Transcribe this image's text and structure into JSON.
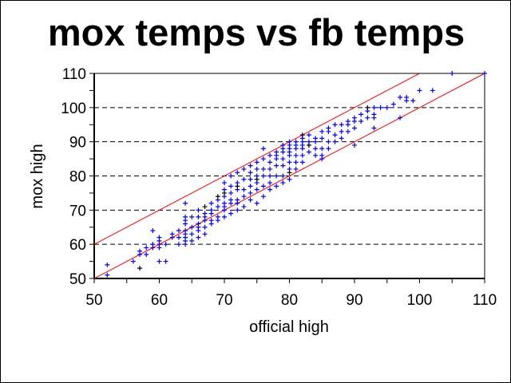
{
  "chart_data": {
    "type": "scatter",
    "title": "mox temps vs fb temps",
    "xlabel": "official high",
    "ylabel": "mox high",
    "xlim": [
      50,
      110
    ],
    "ylim": [
      50,
      110
    ],
    "xticks": [
      50,
      60,
      70,
      80,
      90,
      100,
      110
    ],
    "yticks": [
      50,
      60,
      70,
      80,
      90,
      100,
      110
    ],
    "grid": "horizontal dashed",
    "reference_lines": [
      {
        "name": "y = x",
        "color": "#ff0000",
        "from": [
          50,
          50
        ],
        "to": [
          110,
          110
        ]
      },
      {
        "name": "y = x + 10",
        "color": "#ff0000",
        "from": [
          50,
          60
        ],
        "to": [
          100,
          110
        ]
      }
    ],
    "series": [
      {
        "name": "blue",
        "color": "#0000ff",
        "points": [
          [
            52,
            51
          ],
          [
            52,
            54
          ],
          [
            56,
            55
          ],
          [
            57,
            57
          ],
          [
            57,
            58
          ],
          [
            58,
            59
          ],
          [
            58,
            57
          ],
          [
            59,
            60
          ],
          [
            59,
            64
          ],
          [
            59,
            59
          ],
          [
            60,
            55
          ],
          [
            60,
            59
          ],
          [
            60,
            60
          ],
          [
            60,
            61
          ],
          [
            60,
            62
          ],
          [
            61,
            55
          ],
          [
            61,
            60
          ],
          [
            62,
            62
          ],
          [
            62,
            63
          ],
          [
            63,
            60
          ],
          [
            63,
            62
          ],
          [
            63,
            64
          ],
          [
            64,
            60
          ],
          [
            64,
            61
          ],
          [
            64,
            62
          ],
          [
            64,
            63
          ],
          [
            64,
            64
          ],
          [
            64,
            66
          ],
          [
            64,
            67
          ],
          [
            64,
            68
          ],
          [
            64,
            72
          ],
          [
            65,
            61
          ],
          [
            65,
            63
          ],
          [
            65,
            65
          ],
          [
            65,
            68
          ],
          [
            66,
            62
          ],
          [
            66,
            64
          ],
          [
            66,
            65
          ],
          [
            66,
            66
          ],
          [
            66,
            68
          ],
          [
            66,
            70
          ],
          [
            67,
            63
          ],
          [
            67,
            65
          ],
          [
            67,
            67
          ],
          [
            67,
            68
          ],
          [
            67,
            69
          ],
          [
            68,
            66
          ],
          [
            68,
            67
          ],
          [
            68,
            69
          ],
          [
            68,
            70
          ],
          [
            68,
            72
          ],
          [
            69,
            67
          ],
          [
            69,
            68
          ],
          [
            69,
            71
          ],
          [
            69,
            73
          ],
          [
            70,
            68
          ],
          [
            70,
            70
          ],
          [
            70,
            71
          ],
          [
            70,
            72
          ],
          [
            70,
            74
          ],
          [
            70,
            76
          ],
          [
            70,
            78
          ],
          [
            71,
            69
          ],
          [
            71,
            72
          ],
          [
            71,
            73
          ],
          [
            71,
            75
          ],
          [
            71,
            77
          ],
          [
            71,
            80
          ],
          [
            72,
            70
          ],
          [
            72,
            72
          ],
          [
            72,
            73
          ],
          [
            72,
            76
          ],
          [
            72,
            78
          ],
          [
            72,
            81
          ],
          [
            73,
            71
          ],
          [
            73,
            74
          ],
          [
            73,
            76
          ],
          [
            73,
            79
          ],
          [
            73,
            82
          ],
          [
            74,
            73
          ],
          [
            74,
            75
          ],
          [
            74,
            77
          ],
          [
            74,
            79
          ],
          [
            74,
            81
          ],
          [
            74,
            83
          ],
          [
            75,
            72
          ],
          [
            75,
            76
          ],
          [
            75,
            78
          ],
          [
            75,
            80
          ],
          [
            75,
            82
          ],
          [
            75,
            84
          ],
          [
            76,
            74
          ],
          [
            76,
            77
          ],
          [
            76,
            80
          ],
          [
            76,
            82
          ],
          [
            76,
            85
          ],
          [
            76,
            88
          ],
          [
            77,
            76
          ],
          [
            77,
            78
          ],
          [
            77,
            80
          ],
          [
            77,
            82
          ],
          [
            77,
            84
          ],
          [
            77,
            86
          ],
          [
            78,
            77
          ],
          [
            78,
            80
          ],
          [
            78,
            83
          ],
          [
            78,
            85
          ],
          [
            78,
            86
          ],
          [
            78,
            87
          ],
          [
            79,
            78
          ],
          [
            79,
            80
          ],
          [
            79,
            83
          ],
          [
            79,
            85
          ],
          [
            79,
            87
          ],
          [
            79,
            88
          ],
          [
            79,
            89
          ],
          [
            80,
            79
          ],
          [
            80,
            82
          ],
          [
            80,
            84
          ],
          [
            80,
            86
          ],
          [
            80,
            87
          ],
          [
            80,
            88
          ],
          [
            80,
            89
          ],
          [
            80,
            90
          ],
          [
            81,
            82
          ],
          [
            81,
            84
          ],
          [
            81,
            86
          ],
          [
            81,
            88
          ],
          [
            81,
            89
          ],
          [
            81,
            90
          ],
          [
            82,
            84
          ],
          [
            82,
            86
          ],
          [
            82,
            88
          ],
          [
            82,
            89
          ],
          [
            82,
            90
          ],
          [
            82,
            91
          ],
          [
            83,
            87
          ],
          [
            83,
            89
          ],
          [
            83,
            90
          ],
          [
            83,
            92
          ],
          [
            84,
            86
          ],
          [
            84,
            88
          ],
          [
            84,
            90
          ],
          [
            84,
            91
          ],
          [
            85,
            85
          ],
          [
            85,
            86
          ],
          [
            85,
            88
          ],
          [
            85,
            91
          ],
          [
            85,
            93
          ],
          [
            86,
            88
          ],
          [
            86,
            90
          ],
          [
            86,
            93
          ],
          [
            86,
            94
          ],
          [
            87,
            90
          ],
          [
            87,
            92
          ],
          [
            87,
            95
          ],
          [
            88,
            91
          ],
          [
            88,
            93
          ],
          [
            88,
            95
          ],
          [
            89,
            93
          ],
          [
            89,
            95
          ],
          [
            89,
            96
          ],
          [
            90,
            89
          ],
          [
            90,
            94
          ],
          [
            90,
            96
          ],
          [
            90,
            97
          ],
          [
            91,
            96
          ],
          [
            91,
            98
          ],
          [
            92,
            97
          ],
          [
            92,
            99
          ],
          [
            93,
            94
          ],
          [
            93,
            97
          ],
          [
            93,
            98
          ],
          [
            93,
            100
          ],
          [
            94,
            100
          ],
          [
            95,
            100
          ],
          [
            96,
            101
          ],
          [
            97,
            97
          ],
          [
            97,
            103
          ],
          [
            98,
            102
          ],
          [
            98,
            103
          ],
          [
            99,
            102
          ],
          [
            100,
            105
          ],
          [
            102,
            105
          ],
          [
            105,
            110
          ],
          [
            110,
            110
          ]
        ]
      },
      {
        "name": "black",
        "color": "#000000",
        "points": [
          [
            57,
            53
          ],
          [
            67,
            71
          ],
          [
            69,
            74
          ],
          [
            70,
            75
          ],
          [
            72,
            77
          ],
          [
            75,
            79
          ],
          [
            80,
            81
          ],
          [
            82,
            92
          ],
          [
            83,
            89
          ],
          [
            92,
            100
          ]
        ]
      }
    ]
  }
}
